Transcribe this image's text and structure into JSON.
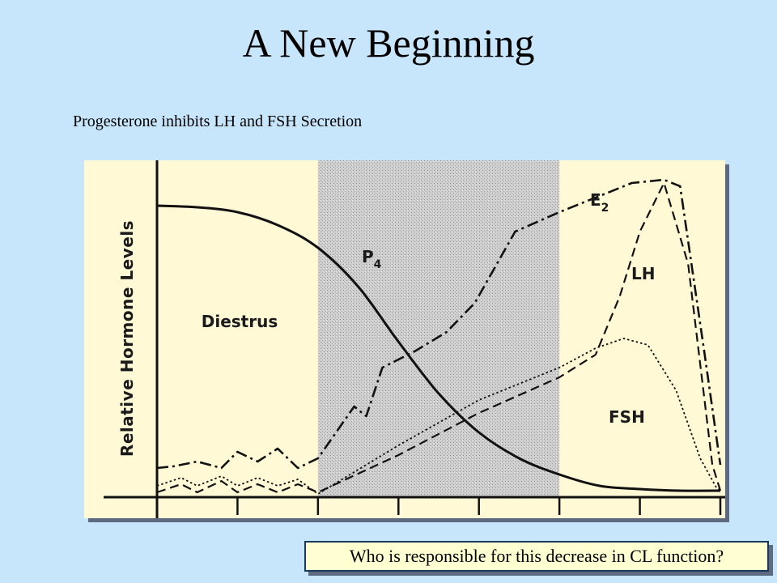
{
  "slide": {
    "title": "A New Beginning",
    "subtitle": "Progesterone inhibits LH and FSH Secretion",
    "question": "Who is responsible for this decrease in CL function?",
    "background_color": "#c8e6fb"
  },
  "chart_data": {
    "type": "line",
    "ylabel": "Relative Hormone Levels",
    "xlabel": "",
    "x_ticks": 7,
    "x_range": [
      0,
      7
    ],
    "y_range": [
      0,
      100
    ],
    "shaded_region": {
      "x": [
        2,
        5
      ],
      "pattern": "stippled gray"
    },
    "region_labels": [
      {
        "text": "Diestrus"
      }
    ],
    "series": [
      {
        "name": "P4",
        "label_main": "P",
        "label_sub": "4",
        "style": "solid",
        "x": [
          0,
          0.5,
          1,
          1.5,
          2,
          2.5,
          3,
          3.5,
          4,
          4.5,
          5,
          5.5,
          6,
          6.5,
          7
        ],
        "y": [
          90,
          89.5,
          88,
          84,
          77,
          65,
          48,
          32,
          20,
          12,
          7,
          3.5,
          2.5,
          2,
          2
        ]
      },
      {
        "name": "E2",
        "label_main": "E",
        "label_sub": "2",
        "style": "dash-dot",
        "x": [
          0,
          0.2,
          0.5,
          0.8,
          1.0,
          1.25,
          1.5,
          1.75,
          2.0,
          2.45,
          2.6,
          2.8,
          3.2,
          3.6,
          3.95,
          4.45,
          5.0,
          5.5,
          5.9,
          6.3,
          6.5,
          6.8,
          7.0
        ],
        "y": [
          9,
          9.5,
          11,
          9,
          14,
          11,
          15,
          9,
          12,
          28,
          25,
          40,
          45,
          51,
          60,
          82,
          88,
          93,
          97,
          98,
          96,
          45,
          10
        ]
      },
      {
        "name": "LH",
        "style": "dashed",
        "x": [
          0,
          0.3,
          0.5,
          0.8,
          1.0,
          1.25,
          1.5,
          1.75,
          2.0,
          3.0,
          4.0,
          5.0,
          5.45,
          5.75,
          6.0,
          6.3,
          6.6,
          6.9,
          7.0
        ],
        "y": [
          1.5,
          4,
          1.5,
          5,
          1.5,
          4,
          1.5,
          4,
          1.5,
          13,
          26,
          37,
          44,
          62,
          82,
          97,
          72,
          10,
          2
        ]
      },
      {
        "name": "FSH",
        "style": "dotted",
        "x": [
          0,
          0.3,
          0.5,
          0.8,
          1.0,
          1.25,
          1.5,
          1.75,
          2.0,
          3.0,
          4.0,
          5.0,
          5.45,
          5.8,
          6.1,
          6.45,
          6.75,
          6.95,
          7.0
        ],
        "y": [
          3.5,
          6,
          3.5,
          6.5,
          3.5,
          6,
          3.5,
          5.5,
          1,
          16,
          30,
          40,
          46,
          49,
          47,
          33,
          12,
          3,
          2
        ]
      }
    ]
  }
}
